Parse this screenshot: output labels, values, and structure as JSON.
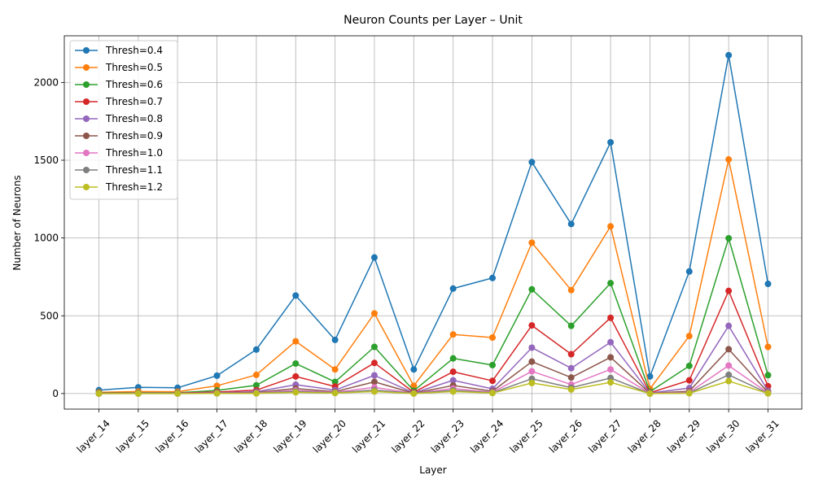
{
  "chart_data": {
    "type": "line",
    "title": "Neuron Counts per Layer – Unit",
    "xlabel": "Layer",
    "ylabel": "Number of Neurons",
    "ylim": [
      -100,
      2300
    ],
    "yticks": [
      0,
      500,
      1000,
      1500,
      2000
    ],
    "grid": true,
    "legend_position": "upper-left",
    "categories": [
      "layer_14",
      "layer_15",
      "layer_16",
      "layer_17",
      "layer_18",
      "layer_19",
      "layer_20",
      "layer_21",
      "layer_22",
      "layer_23",
      "layer_24",
      "layer_25",
      "layer_26",
      "layer_27",
      "layer_28",
      "layer_29",
      "layer_30",
      "layer_31"
    ],
    "series": [
      {
        "name": "Thresh=0.4",
        "color": "#1f77b4",
        "values": [
          22,
          40,
          37,
          115,
          283,
          630,
          345,
          875,
          155,
          675,
          743,
          1488,
          1090,
          1615,
          110,
          785,
          2175,
          705
        ]
      },
      {
        "name": "Thresh=0.5",
        "color": "#ff7f0e",
        "values": [
          8,
          13,
          12,
          50,
          120,
          336,
          155,
          515,
          50,
          380,
          360,
          970,
          665,
          1075,
          30,
          370,
          1505,
          300
        ]
      },
      {
        "name": "Thresh=0.6",
        "color": "#2ca02c",
        "values": [
          4,
          5,
          5,
          20,
          53,
          193,
          75,
          300,
          18,
          226,
          183,
          670,
          435,
          710,
          12,
          178,
          998,
          118
        ]
      },
      {
        "name": "Thresh=0.7",
        "color": "#d62728",
        "values": [
          2,
          3,
          3,
          10,
          22,
          110,
          45,
          197,
          8,
          140,
          82,
          438,
          253,
          487,
          5,
          85,
          660,
          47
        ]
      },
      {
        "name": "Thresh=0.8",
        "color": "#9467bd",
        "values": [
          1,
          2,
          2,
          5,
          12,
          57,
          22,
          117,
          4,
          85,
          30,
          295,
          163,
          330,
          3,
          35,
          435,
          17
        ]
      },
      {
        "name": "Thresh=0.9",
        "color": "#8c564b",
        "values": [
          1,
          1,
          1,
          3,
          7,
          32,
          12,
          75,
          2,
          52,
          15,
          205,
          103,
          233,
          2,
          15,
          285,
          8
        ]
      },
      {
        "name": "Thresh=1.0",
        "color": "#e377c2",
        "values": [
          0,
          1,
          1,
          2,
          4,
          20,
          8,
          40,
          1,
          32,
          8,
          143,
          58,
          155,
          1,
          8,
          180,
          4
        ]
      },
      {
        "name": "Thresh=1.1",
        "color": "#7f7f7f",
        "values": [
          0,
          0,
          0,
          1,
          2,
          13,
          5,
          22,
          1,
          20,
          5,
          95,
          38,
          100,
          0,
          4,
          120,
          2
        ]
      },
      {
        "name": "Thresh=1.2",
        "color": "#bcbd22",
        "values": [
          0,
          0,
          0,
          1,
          1,
          8,
          3,
          13,
          0,
          13,
          3,
          68,
          26,
          72,
          0,
          2,
          80,
          1
        ]
      }
    ]
  }
}
